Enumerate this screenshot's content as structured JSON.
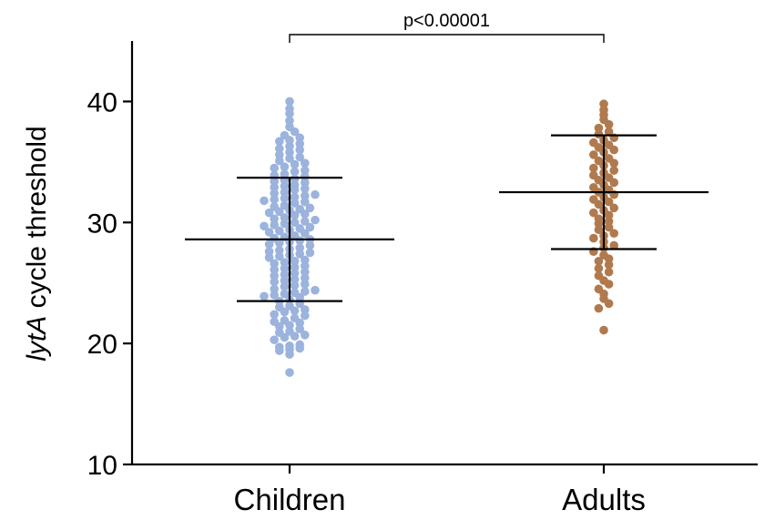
{
  "chart_data": {
    "type": "scatter",
    "subtype": "dot-plot-with-mean-and-sd",
    "ylabel_italic": "lytA",
    "ylabel_rest": " cycle threshold",
    "ylim": [
      10,
      45
    ],
    "yticks": [
      10,
      20,
      30,
      40
    ],
    "categories": [
      "Children",
      "Adults"
    ],
    "series": [
      {
        "name": "Children",
        "color": "#9BB3DD",
        "mean": 28.6,
        "sd_upper": 33.7,
        "sd_lower": 23.5,
        "values": [
          17.6,
          19.1,
          19.4,
          19.5,
          19.6,
          19.7,
          19.8,
          19.9,
          20.3,
          20.5,
          20.6,
          20.7,
          20.9,
          21.0,
          21.2,
          21.4,
          21.5,
          21.7,
          21.8,
          21.9,
          22.1,
          22.3,
          22.4,
          22.6,
          22.7,
          22.8,
          23.0,
          23.1,
          23.3,
          23.5,
          23.6,
          23.8,
          23.9,
          24.0,
          24.1,
          24.2,
          24.3,
          24.4,
          24.5,
          24.7,
          24.8,
          24.9,
          25.1,
          25.2,
          25.3,
          25.4,
          25.6,
          25.7,
          25.8,
          25.9,
          26.1,
          26.2,
          26.3,
          26.4,
          26.6,
          26.7,
          26.8,
          26.9,
          27.1,
          27.2,
          27.3,
          27.4,
          27.5,
          27.6,
          27.7,
          27.8,
          27.9,
          28.1,
          28.2,
          28.3,
          28.4,
          28.5,
          28.6,
          28.7,
          28.8,
          28.9,
          29.1,
          29.2,
          29.3,
          29.4,
          29.5,
          29.6,
          29.7,
          29.8,
          29.9,
          30.0,
          30.1,
          30.2,
          30.3,
          30.4,
          30.6,
          30.7,
          30.8,
          30.9,
          31.0,
          31.1,
          31.2,
          31.3,
          31.4,
          31.6,
          31.7,
          31.8,
          31.9,
          32.0,
          32.1,
          32.2,
          32.3,
          32.4,
          32.5,
          32.7,
          32.8,
          32.9,
          33.0,
          33.1,
          33.3,
          33.4,
          33.5,
          33.6,
          33.8,
          33.9,
          34.0,
          34.2,
          34.3,
          34.5,
          34.6,
          34.8,
          34.9,
          35.1,
          35.3,
          35.4,
          35.6,
          35.8,
          36.0,
          36.1,
          36.3,
          36.5,
          36.7,
          36.8,
          37.0,
          37.2,
          37.5,
          37.9,
          38.4,
          39.0,
          39.4,
          40.0
        ]
      },
      {
        "name": "Adults",
        "color": "#B07A4E",
        "mean": 32.5,
        "sd_upper": 37.2,
        "sd_lower": 27.8,
        "values": [
          21.1,
          22.9,
          23.3,
          23.7,
          24.1,
          24.5,
          24.9,
          25.2,
          25.6,
          25.9,
          26.2,
          26.5,
          26.8,
          27.0,
          27.3,
          27.6,
          27.9,
          28.1,
          28.4,
          28.7,
          28.9,
          29.1,
          29.4,
          29.6,
          29.9,
          30.1,
          30.3,
          30.6,
          30.8,
          31.0,
          31.2,
          31.5,
          31.7,
          31.9,
          32.1,
          32.3,
          32.5,
          32.7,
          32.9,
          33.1,
          33.3,
          33.5,
          33.7,
          33.9,
          34.1,
          34.3,
          34.5,
          34.7,
          34.9,
          35.1,
          35.3,
          35.6,
          35.8,
          36.0,
          36.2,
          36.4,
          36.6,
          36.8,
          37.0,
          37.3,
          37.5,
          37.8,
          38.1,
          38.5,
          38.9,
          39.3,
          39.8
        ]
      }
    ],
    "annotation": {
      "text": "p<0.00001",
      "between": [
        "Children",
        "Adults"
      ]
    }
  }
}
